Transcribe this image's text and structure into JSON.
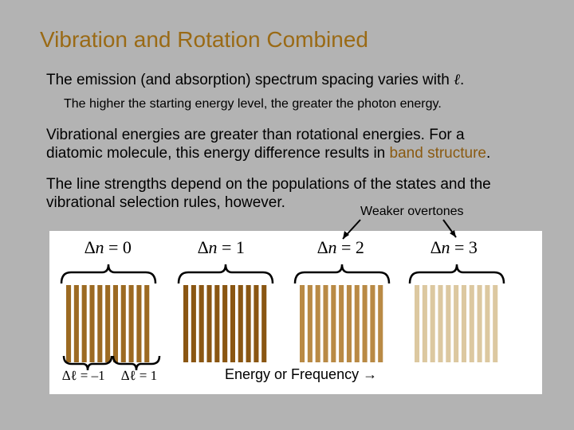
{
  "slide": {
    "title": "Vibration and Rotation Combined",
    "line1_prefix": "The emission (and absorption) spectrum spacing varies with ",
    "line1_symbol": "ℓ",
    "line1_suffix": ".",
    "line2": "The higher the starting energy level, the greater the photon energy.",
    "line3_a": "Vibrational energies are greater than rotational energies.  For a",
    "line3_b_prefix": "diatomic molecule, this energy difference results in ",
    "line3_b_highlight": "band structure",
    "line3_b_suffix": ".",
    "line4_a": "The line strengths depend on the populations of the states and the",
    "line4_b": "vibrational selection rules, however.",
    "weaker_label": "Weaker overtones"
  },
  "bands": [
    {
      "delta_symbol": "∆",
      "var": "n",
      "eq": " = 0",
      "color": "#9c6a22"
    },
    {
      "delta_symbol": "∆",
      "var": "n",
      "eq": " = 1",
      "color": "#8a5612"
    },
    {
      "delta_symbol": "∆",
      "var": "n",
      "eq": " = 2",
      "color": "#b98a45"
    },
    {
      "delta_symbol": "∆",
      "var": "n",
      "eq": " = 3",
      "color": "#dcc8a0"
    }
  ],
  "branches": {
    "left_label": "∆ℓ = –1",
    "right_label": "∆ℓ = 1"
  },
  "axis_label": "Energy or Frequency →"
}
